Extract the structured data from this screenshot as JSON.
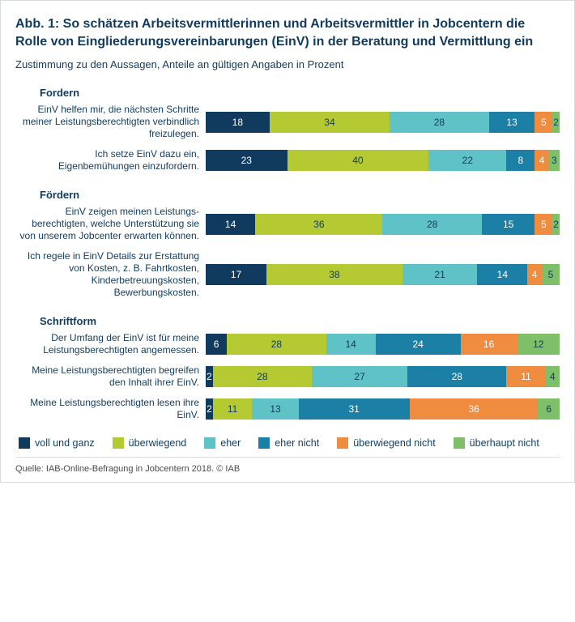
{
  "title": "Abb. 1: So schätzen Arbeitsvermittlerinnen und Arbeitsvermittler in Jobcentern die Rolle von Eingliederungsvereinbarungen (EinV) in der Beratung und Vermittlung ein",
  "subtitle": "Zustimmung zu den Aussagen, Anteile an gültigen Angaben in Prozent",
  "source": "Quelle: IAB-Online-Befragung in Jobcentern 2018. © IAB",
  "colors": {
    "title_text": "#113b5e",
    "subtitle_text": "#113b5e",
    "body_text": "#113b5e",
    "voll_und_ganz": "#113b5e",
    "ueberwiegend": "#b4c932",
    "eher": "#5fc2c7",
    "eher_nicht": "#1b7fa6",
    "ueberwiegend_nicht": "#f08c3f",
    "ueberhaupt_nicht": "#7fbf6a",
    "seg_label_light": "#ffffff",
    "seg_label_dark": "#113b5e"
  },
  "font_sizes": {
    "title": 16,
    "subtitle": 13,
    "group": 13,
    "label": 12,
    "legend": 12.5,
    "source": 11
  },
  "categories": [
    {
      "key": "voll_und_ganz",
      "label": "voll und ganz"
    },
    {
      "key": "ueberwiegend",
      "label": "überwiegend"
    },
    {
      "key": "eher",
      "label": "eher"
    },
    {
      "key": "eher_nicht",
      "label": "eher nicht"
    },
    {
      "key": "ueberwiegend_nicht",
      "label": "überwiegend nicht"
    },
    {
      "key": "ueberhaupt_nicht",
      "label": "überhaupt nicht"
    }
  ],
  "groups": [
    {
      "title": "Fordern",
      "rows": [
        {
          "label": "EinV helfen mir, die nächsten Schritte meiner Leistungsberechtigten verbindlich freizulegen.",
          "values": [
            18,
            34,
            28,
            13,
            5,
            2
          ]
        },
        {
          "label": "Ich setze EinV dazu ein, Eigenbemühungen einzufordern.",
          "values": [
            23,
            40,
            22,
            8,
            4,
            3
          ]
        }
      ]
    },
    {
      "title": "Fördern",
      "rows": [
        {
          "label": "EinV zeigen meinen Leistungs­berechtigten, welche Unterstützung sie von unserem Jobcenter erwarten können.",
          "values": [
            14,
            36,
            28,
            15,
            5,
            2
          ]
        },
        {
          "label": "Ich regele in EinV Details zur Er­stattung von Kosten, z. B. Fahrt­kosten, Kinderbetreuungskosten, Bewerbungskosten.",
          "values": [
            17,
            38,
            21,
            14,
            4,
            5
          ]
        }
      ]
    },
    {
      "title": "Schriftform",
      "rows": [
        {
          "label": "Der Umfang der EinV ist für meine Leistungsberechtigten angemessen.",
          "values": [
            6,
            28,
            14,
            24,
            16,
            12
          ]
        },
        {
          "label": "Meine Leistungsberechtigten begreifen den Inhalt ihrer EinV.",
          "values": [
            2,
            28,
            27,
            28,
            11,
            4
          ]
        },
        {
          "label": "Meine Leistungsberechtigten lesen ihre EinV.",
          "values": [
            2,
            11,
            13,
            31,
            36,
            6
          ]
        }
      ]
    }
  ]
}
